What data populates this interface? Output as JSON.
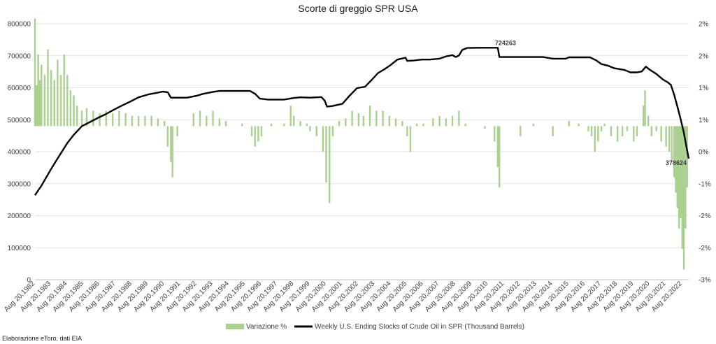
{
  "chart_data": {
    "type": "bar+line",
    "title": "Scorte di greggio SPR  USA",
    "source_note": "Elaborazione eToro, dati EIA",
    "left_axis": {
      "min": 0,
      "max": 800000,
      "ticks": [
        0,
        100000,
        200000,
        300000,
        400000,
        500000,
        600000,
        700000,
        800000
      ]
    },
    "right_axis": {
      "min": -3,
      "max": 2,
      "ticks": [
        "2%",
        "2%",
        "1%",
        "1%",
        "0%",
        "-1%",
        "-2%",
        "-2%",
        "-3%"
      ]
    },
    "x_labels": [
      "Aug 20,1982",
      "Aug 20,1983",
      "Aug 20,1984",
      "Aug 20,1985",
      "Aug 20,1986",
      "Aug 20,1987",
      "Aug 20,1988",
      "Aug 20,1989",
      "Aug 20,1990",
      "Aug 20,1991",
      "Aug 20,1992",
      "Aug 20,1993",
      "Aug 20,1994",
      "Aug 20,1995",
      "Aug 20,1996",
      "Aug 20,1997",
      "Aug 20,1998",
      "Aug 20,1999",
      "Aug 20,2000",
      "Aug 20,2001",
      "Aug 20,2002",
      "Aug 20,2003",
      "Aug 20,2004",
      "Aug 20,2005",
      "Aug 20,2006",
      "Aug 20,2007",
      "Aug 20,2008",
      "Aug 20,2009",
      "Aug 20,2010",
      "Aug 20,2011",
      "Aug 20,2012",
      "Aug 20,2013",
      "Aug 20,2014",
      "Aug 20,2015",
      "Aug 20,2016",
      "Aug 20,2017",
      "Aug 20,2018",
      "Aug 20,2019",
      "Aug 20,2020",
      "Aug 20,2021",
      "Aug 20,2022"
    ],
    "series": [
      {
        "name": "Variazione %",
        "type": "bar",
        "axis": "right",
        "color": "#a9d18e",
        "points": [
          [
            1982.6,
            2.1
          ],
          [
            1982.7,
            0.8
          ],
          [
            1982.8,
            1.4
          ],
          [
            1982.9,
            0.9
          ],
          [
            1983.0,
            1.2
          ],
          [
            1983.2,
            1.0
          ],
          [
            1983.4,
            1.5
          ],
          [
            1983.6,
            1.1
          ],
          [
            1983.8,
            0.9
          ],
          [
            1984.0,
            1.3
          ],
          [
            1984.2,
            1.0
          ],
          [
            1984.4,
            1.4
          ],
          [
            1984.6,
            1.0
          ],
          [
            1984.8,
            0.7
          ],
          [
            1985.0,
            0.6
          ],
          [
            1985.2,
            0.4
          ],
          [
            1985.5,
            0.3
          ],
          [
            1985.8,
            0.35
          ],
          [
            1986.2,
            0.3
          ],
          [
            1986.6,
            0.25
          ],
          [
            1987.0,
            0.3
          ],
          [
            1987.4,
            0.25
          ],
          [
            1987.8,
            0.3
          ],
          [
            1988.2,
            0.25
          ],
          [
            1988.6,
            0.2
          ],
          [
            1989.0,
            0.2
          ],
          [
            1989.4,
            0.2
          ],
          [
            1989.8,
            0.2
          ],
          [
            1990.2,
            0.15
          ],
          [
            1990.6,
            0.1
          ],
          [
            1990.8,
            -0.4
          ],
          [
            1991.0,
            -0.7
          ],
          [
            1991.1,
            -1.0
          ],
          [
            1991.4,
            -0.2
          ],
          [
            1992.4,
            0.25
          ],
          [
            1992.8,
            0.3
          ],
          [
            1993.2,
            0.2
          ],
          [
            1993.6,
            0.3
          ],
          [
            1994.0,
            0.15
          ],
          [
            1994.4,
            0.1
          ],
          [
            1995.4,
            0.05
          ],
          [
            1996.0,
            -0.2
          ],
          [
            1996.2,
            -0.4
          ],
          [
            1996.4,
            -0.3
          ],
          [
            1996.6,
            -0.2
          ],
          [
            1997.2,
            0.05
          ],
          [
            1998.0,
            0.05
          ],
          [
            1998.4,
            0.4
          ],
          [
            1998.6,
            0.2
          ],
          [
            1999.0,
            0.1
          ],
          [
            1999.4,
            0.05
          ],
          [
            1999.6,
            -0.1
          ],
          [
            2000.0,
            -0.2
          ],
          [
            2000.4,
            -0.5
          ],
          [
            2000.6,
            -1.1
          ],
          [
            2000.8,
            -1.5
          ],
          [
            2001.0,
            -0.2
          ],
          [
            2001.4,
            0.1
          ],
          [
            2001.8,
            0.15
          ],
          [
            2002.2,
            0.3
          ],
          [
            2002.6,
            0.25
          ],
          [
            2002.9,
            0.2
          ],
          [
            2003.3,
            0.4
          ],
          [
            2003.7,
            0.3
          ],
          [
            2004.1,
            0.3
          ],
          [
            2004.5,
            0.2
          ],
          [
            2004.9,
            0.15
          ],
          [
            2005.3,
            0.1
          ],
          [
            2005.6,
            -0.2
          ],
          [
            2005.8,
            -0.5
          ],
          [
            2006.2,
            0.05
          ],
          [
            2006.6,
            0.05
          ],
          [
            2007.2,
            0.15
          ],
          [
            2007.6,
            0.2
          ],
          [
            2008.0,
            0.15
          ],
          [
            2008.4,
            0.2
          ],
          [
            2008.8,
            0.3
          ],
          [
            2009.2,
            0.05
          ],
          [
            2010.4,
            -0.05
          ],
          [
            2011.0,
            -0.3
          ],
          [
            2011.2,
            -0.8
          ],
          [
            2011.3,
            -1.2
          ],
          [
            2012.6,
            -0.2
          ],
          [
            2013.4,
            0.05
          ],
          [
            2014.6,
            -0.2
          ],
          [
            2015.6,
            0.1
          ],
          [
            2016.2,
            0.05
          ],
          [
            2016.8,
            -0.1
          ],
          [
            2017.0,
            -0.2
          ],
          [
            2017.2,
            -0.5
          ],
          [
            2017.4,
            -0.3
          ],
          [
            2017.6,
            -0.1
          ],
          [
            2017.8,
            0.05
          ],
          [
            2018.2,
            -0.2
          ],
          [
            2018.6,
            -0.3
          ],
          [
            2018.9,
            -0.2
          ],
          [
            2019.2,
            -0.1
          ],
          [
            2019.6,
            -0.3
          ],
          [
            2019.8,
            -0.2
          ],
          [
            2020.2,
            0.4
          ],
          [
            2020.3,
            0.7
          ],
          [
            2020.5,
            0.2
          ],
          [
            2020.7,
            -0.2
          ],
          [
            2021.0,
            -0.1
          ],
          [
            2021.3,
            -0.3
          ],
          [
            2021.6,
            -0.4
          ],
          [
            2021.8,
            -0.5
          ],
          [
            2021.95,
            -0.7
          ],
          [
            2022.1,
            -1.0
          ],
          [
            2022.2,
            -1.3
          ],
          [
            2022.3,
            -1.6
          ],
          [
            2022.4,
            -2.0
          ],
          [
            2022.5,
            -1.8
          ],
          [
            2022.6,
            -2.4
          ],
          [
            2022.7,
            -2.8
          ],
          [
            2022.8,
            -2.0
          ],
          [
            2022.9,
            -1.2
          ]
        ]
      },
      {
        "name": "Weekly U.S. Ending Stocks of Crude Oil in SPR  (Thousand Barrels)",
        "type": "line",
        "axis": "left",
        "color": "#000000",
        "points": [
          [
            1982.6,
            264000
          ],
          [
            1983.0,
            294000
          ],
          [
            1983.6,
            346000
          ],
          [
            1984.0,
            379000
          ],
          [
            1984.6,
            427000
          ],
          [
            1985.0,
            453000
          ],
          [
            1985.5,
            480000
          ],
          [
            1986.0,
            493000
          ],
          [
            1986.5,
            506000
          ],
          [
            1987.0,
            518000
          ],
          [
            1987.5,
            532000
          ],
          [
            1988.0,
            545000
          ],
          [
            1988.5,
            557000
          ],
          [
            1989.0,
            570000
          ],
          [
            1989.6,
            579000
          ],
          [
            1990.0,
            583000
          ],
          [
            1990.5,
            588000
          ],
          [
            1990.8,
            586000
          ],
          [
            1991.0,
            569000
          ],
          [
            1992.0,
            569000
          ],
          [
            1992.6,
            575000
          ],
          [
            1993.0,
            581000
          ],
          [
            1993.6,
            587000
          ],
          [
            1994.0,
            590000
          ],
          [
            1995.0,
            590000
          ],
          [
            1995.9,
            590000
          ],
          [
            1996.2,
            581000
          ],
          [
            1996.5,
            566000
          ],
          [
            1997.0,
            563000
          ],
          [
            1998.0,
            563000
          ],
          [
            1998.6,
            568000
          ],
          [
            1999.0,
            570000
          ],
          [
            1999.6,
            569000
          ],
          [
            2000.3,
            571000
          ],
          [
            2000.5,
            560000
          ],
          [
            2000.65,
            541000
          ],
          [
            2001.0,
            543000
          ],
          [
            2001.6,
            550000
          ],
          [
            2002.0,
            573000
          ],
          [
            2002.5,
            599000
          ],
          [
            2003.0,
            603000
          ],
          [
            2003.4,
            624000
          ],
          [
            2003.8,
            646000
          ],
          [
            2004.2,
            658000
          ],
          [
            2004.6,
            672000
          ],
          [
            2005.0,
            688000
          ],
          [
            2005.5,
            694000
          ],
          [
            2005.6,
            684000
          ],
          [
            2006.0,
            685000
          ],
          [
            2006.5,
            688000
          ],
          [
            2007.0,
            688000
          ],
          [
            2007.6,
            691000
          ],
          [
            2008.0,
            698000
          ],
          [
            2008.4,
            702000
          ],
          [
            2008.6,
            696000
          ],
          [
            2008.8,
            701000
          ],
          [
            2009.0,
            718000
          ],
          [
            2009.3,
            724263
          ],
          [
            2010.0,
            725000
          ],
          [
            2011.2,
            725000
          ],
          [
            2011.3,
            696000
          ],
          [
            2012.0,
            696000
          ],
          [
            2013.0,
            696000
          ],
          [
            2014.0,
            696000
          ],
          [
            2014.6,
            691000
          ],
          [
            2015.4,
            691000
          ],
          [
            2015.6,
            695000
          ],
          [
            2016.0,
            695000
          ],
          [
            2016.9,
            695000
          ],
          [
            2017.3,
            685000
          ],
          [
            2017.6,
            674000
          ],
          [
            2018.0,
            669000
          ],
          [
            2018.4,
            661000
          ],
          [
            2019.0,
            656000
          ],
          [
            2019.4,
            648000
          ],
          [
            2019.8,
            648000
          ],
          [
            2020.1,
            651000
          ],
          [
            2020.35,
            666000
          ],
          [
            2020.6,
            656000
          ],
          [
            2021.0,
            643000
          ],
          [
            2021.4,
            626000
          ],
          [
            2021.7,
            617000
          ],
          [
            2021.9,
            609000
          ],
          [
            2022.1,
            578000
          ],
          [
            2022.3,
            541000
          ],
          [
            2022.5,
            502000
          ],
          [
            2022.7,
            459000
          ],
          [
            2022.85,
            418000
          ],
          [
            2023.0,
            378624
          ]
        ]
      }
    ],
    "annotations": [
      "724263",
      "378624"
    ]
  }
}
